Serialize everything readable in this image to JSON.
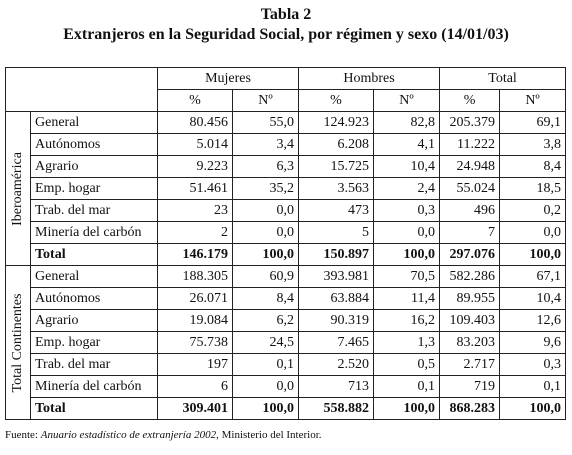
{
  "title": "Tabla 2",
  "subtitle": "Extranjeros en la Seguridad Social, por régimen y sexo (14/01/03)",
  "headers": {
    "groups": [
      "Mujeres",
      "Hombres",
      "Total"
    ],
    "sub": [
      "%",
      "Nº",
      "%",
      "Nº",
      "%",
      "Nº"
    ]
  },
  "sections": [
    {
      "name": "Iberoamérica",
      "rows": [
        {
          "label": "General",
          "values": [
            "80.456",
            "55,0",
            "124.923",
            "82,8",
            "205.379",
            "69,1"
          ]
        },
        {
          "label": "Autónomos",
          "values": [
            "5.014",
            "3,4",
            "6.208",
            "4,1",
            "11.222",
            "3,8"
          ]
        },
        {
          "label": "Agrario",
          "values": [
            "9.223",
            "6,3",
            "15.725",
            "10,4",
            "24.948",
            "8,4"
          ]
        },
        {
          "label": "Emp. hogar",
          "values": [
            "51.461",
            "35,2",
            "3.563",
            "2,4",
            "55.024",
            "18,5"
          ]
        },
        {
          "label": "Trab. del mar",
          "values": [
            "23",
            "0,0",
            "473",
            "0,3",
            "496",
            "0,2"
          ]
        },
        {
          "label": "Minería del carbón",
          "values": [
            "2",
            "0,0",
            "5",
            "0,0",
            "7",
            "0,0"
          ]
        },
        {
          "label": "Total",
          "values": [
            "146.179",
            "100,0",
            "150.897",
            "100,0",
            "297.076",
            "100,0"
          ]
        }
      ]
    },
    {
      "name": "Total Continentes",
      "rows": [
        {
          "label": "General",
          "values": [
            "188.305",
            "60,9",
            "393.981",
            "70,5",
            "582.286",
            "67,1"
          ]
        },
        {
          "label": "Autónomos",
          "values": [
            "26.071",
            "8,4",
            "63.884",
            "11,4",
            "89.955",
            "10,4"
          ]
        },
        {
          "label": "Agrario",
          "values": [
            "19.084",
            "6,2",
            "90.319",
            "16,2",
            "109.403",
            "12,6"
          ]
        },
        {
          "label": "Emp. hogar",
          "values": [
            "75.738",
            "24,5",
            "7.465",
            "1,3",
            "83.203",
            "9,6"
          ]
        },
        {
          "label": "Trab. del mar",
          "values": [
            "197",
            "0,1",
            "2.520",
            "0,5",
            "2.717",
            "0,3"
          ]
        },
        {
          "label": "Minería del carbón",
          "values": [
            "6",
            "0,0",
            "713",
            "0,1",
            "719",
            "0,1"
          ]
        },
        {
          "label": "Total",
          "values": [
            "309.401",
            "100,0",
            "558.882",
            "100,0",
            "868.283",
            "100,0"
          ]
        }
      ]
    }
  ],
  "footnote": {
    "prefix": "Fuente: ",
    "source": "Anuario estadístico de extranjería 2002",
    "suffix": ", Ministerio del Interior."
  }
}
